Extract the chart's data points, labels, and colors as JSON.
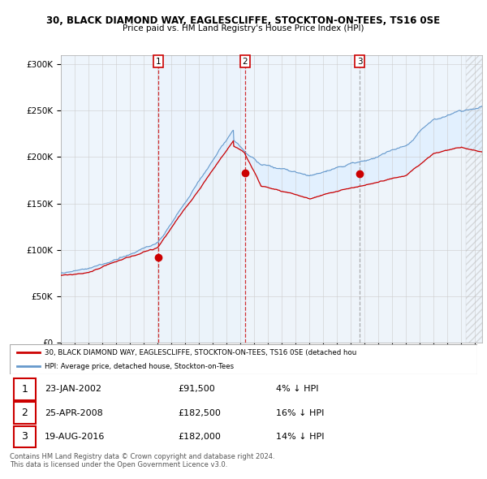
{
  "title_line1": "30, BLACK DIAMOND WAY, EAGLESCLIFFE, STOCKTON-ON-TEES, TS16 0SE",
  "title_line2": "Price paid vs. HM Land Registry's House Price Index (HPI)",
  "ylim": [
    0,
    310000
  ],
  "yticks": [
    0,
    50000,
    100000,
    150000,
    200000,
    250000,
    300000
  ],
  "ytick_labels": [
    "£0",
    "£50K",
    "£100K",
    "£150K",
    "£200K",
    "£250K",
    "£300K"
  ],
  "sale_dates_num": [
    2002.07,
    2008.32,
    2016.64
  ],
  "sale_prices": [
    91500,
    182500,
    182000
  ],
  "sale_labels": [
    "1",
    "2",
    "3"
  ],
  "sale_color": "#cc0000",
  "sale3_vline_color": "#999999",
  "hpi_color": "#6699cc",
  "fill_color": "#ddeeff",
  "background_color": "#ffffff",
  "grid_color": "#cccccc",
  "legend_entries": [
    "30, BLACK DIAMOND WAY, EAGLESCLIFFE, STOCKTON-ON-TEES, TS16 0SE (detached hou",
    "HPI: Average price, detached house, Stockton-on-Tees"
  ],
  "table_rows": [
    {
      "num": "1",
      "date": "23-JAN-2002",
      "price": "£91,500",
      "hpi": "4% ↓ HPI"
    },
    {
      "num": "2",
      "date": "25-APR-2008",
      "price": "£182,500",
      "hpi": "16% ↓ HPI"
    },
    {
      "num": "3",
      "date": "19-AUG-2016",
      "price": "£182,000",
      "hpi": "14% ↓ HPI"
    }
  ],
  "footer": "Contains HM Land Registry data © Crown copyright and database right 2024.\nThis data is licensed under the Open Government Licence v3.0.",
  "xstart": 1995,
  "xend": 2025.5
}
